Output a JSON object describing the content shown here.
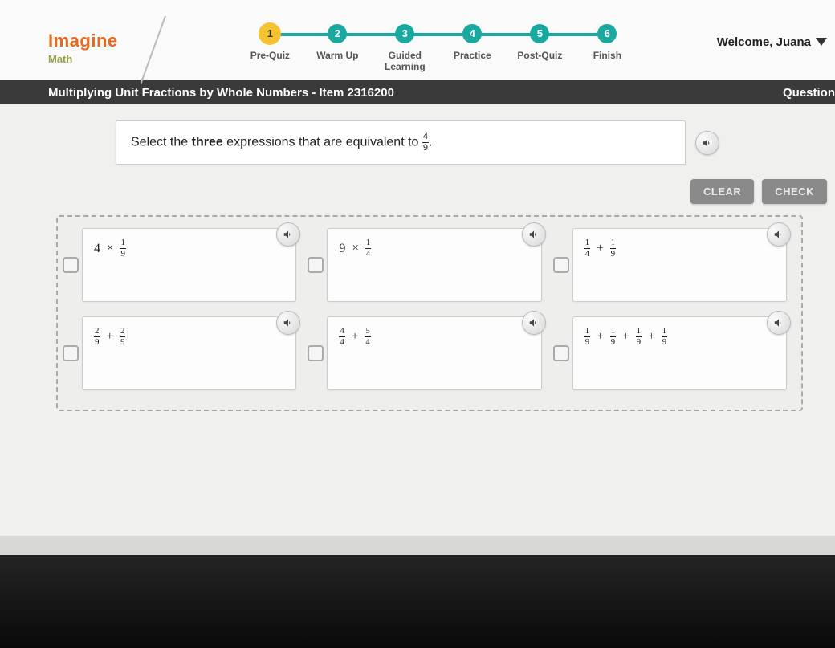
{
  "brand": {
    "name": "Imagine",
    "sub": "Math",
    "name_color": "#e56a1e",
    "sub_color": "#9aa04a"
  },
  "welcome": {
    "prefix": "Welcome, ",
    "user": "Juana"
  },
  "progress": {
    "active_index": 0,
    "active_color": "#f4c430",
    "inactive_color": "#1aa9a0",
    "steps": [
      {
        "num": "1",
        "label": "Pre-Quiz"
      },
      {
        "num": "2",
        "label": "Warm Up"
      },
      {
        "num": "3",
        "label": "Guided Learning"
      },
      {
        "num": "4",
        "label": "Practice"
      },
      {
        "num": "5",
        "label": "Post-Quiz"
      },
      {
        "num": "6",
        "label": "Finish"
      }
    ]
  },
  "titlebar": {
    "left": "Multiplying Unit Fractions by Whole Numbers - Item 2316200",
    "right": "Question"
  },
  "prompt": {
    "pre": "Select the ",
    "bold": "three",
    "post": " expressions that are equivalent to ",
    "target_num": "4",
    "target_den": "9",
    "tail": "."
  },
  "buttons": {
    "clear": "CLEAR",
    "check": "CHECK"
  },
  "options": [
    {
      "parts": [
        {
          "t": "whole",
          "v": "4"
        },
        {
          "t": "op",
          "v": "×"
        },
        {
          "t": "frac",
          "n": "1",
          "d": "9"
        }
      ]
    },
    {
      "parts": [
        {
          "t": "whole",
          "v": "9"
        },
        {
          "t": "op",
          "v": "×"
        },
        {
          "t": "frac",
          "n": "1",
          "d": "4"
        }
      ]
    },
    {
      "parts": [
        {
          "t": "frac",
          "n": "1",
          "d": "4"
        },
        {
          "t": "op",
          "v": "+"
        },
        {
          "t": "frac",
          "n": "1",
          "d": "9"
        }
      ]
    },
    {
      "parts": [
        {
          "t": "frac",
          "n": "2",
          "d": "9"
        },
        {
          "t": "op",
          "v": "+"
        },
        {
          "t": "frac",
          "n": "2",
          "d": "9"
        }
      ]
    },
    {
      "parts": [
        {
          "t": "frac",
          "n": "4",
          "d": "4"
        },
        {
          "t": "op",
          "v": "+"
        },
        {
          "t": "frac",
          "n": "5",
          "d": "4"
        }
      ]
    },
    {
      "parts": [
        {
          "t": "frac",
          "n": "1",
          "d": "9"
        },
        {
          "t": "op",
          "v": "+"
        },
        {
          "t": "frac",
          "n": "1",
          "d": "9"
        },
        {
          "t": "op",
          "v": "+"
        },
        {
          "t": "frac",
          "n": "1",
          "d": "9"
        },
        {
          "t": "op",
          "v": "+"
        },
        {
          "t": "frac",
          "n": "1",
          "d": "9"
        }
      ]
    }
  ]
}
